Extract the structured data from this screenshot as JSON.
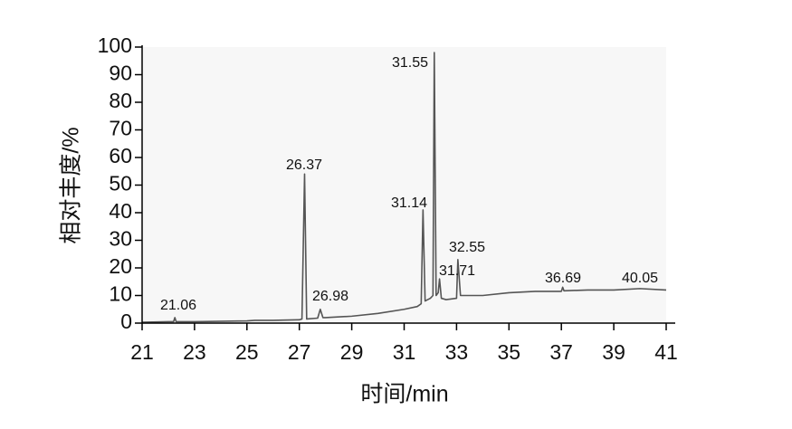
{
  "chart_data": {
    "type": "line",
    "x_label": "时间/min",
    "y_label": "相对丰度/%",
    "x": [
      21,
      22,
      22.2,
      22.25,
      22.3,
      23,
      25,
      25.3,
      26,
      27,
      27.1,
      27.2,
      27.28,
      27.7,
      27.8,
      27.9,
      28,
      29,
      30,
      31,
      31.5,
      31.65,
      31.72,
      31.8,
      32,
      32.1,
      32.15,
      32.22,
      32.3,
      32.35,
      32.42,
      32.6,
      33,
      33.05,
      33.15,
      34,
      35,
      36,
      37,
      37.05,
      37.1,
      38,
      39,
      40,
      41
    ],
    "values": [
      0.3,
      0.5,
      0.5,
      2,
      0.5,
      0.5,
      0.8,
      1,
      1,
      1.2,
      1.5,
      54,
      1.5,
      1.8,
      5,
      2,
      2,
      2.5,
      3.5,
      5,
      6,
      7,
      41,
      8,
      9,
      10,
      98,
      10,
      11,
      16,
      9,
      8.5,
      9,
      23,
      10,
      10,
      11,
      11.5,
      11.5,
      13,
      11.7,
      12,
      12,
      12.5,
      12
    ],
    "color": "#555555",
    "annotations": [
      "21.06",
      "26.37",
      "26.98",
      "31.55",
      "31.14",
      "32.55",
      "31.71",
      "36.69",
      "40.05"
    ],
    "xlim": [
      21,
      41
    ],
    "xticks": [
      21,
      23,
      25,
      27,
      29,
      31,
      33,
      35,
      37,
      39,
      41
    ],
    "ylim": [
      0,
      100
    ],
    "yticks": [
      0,
      10,
      20,
      30,
      40,
      50,
      60,
      70,
      80,
      90,
      100
    ],
    "grid": false
  }
}
